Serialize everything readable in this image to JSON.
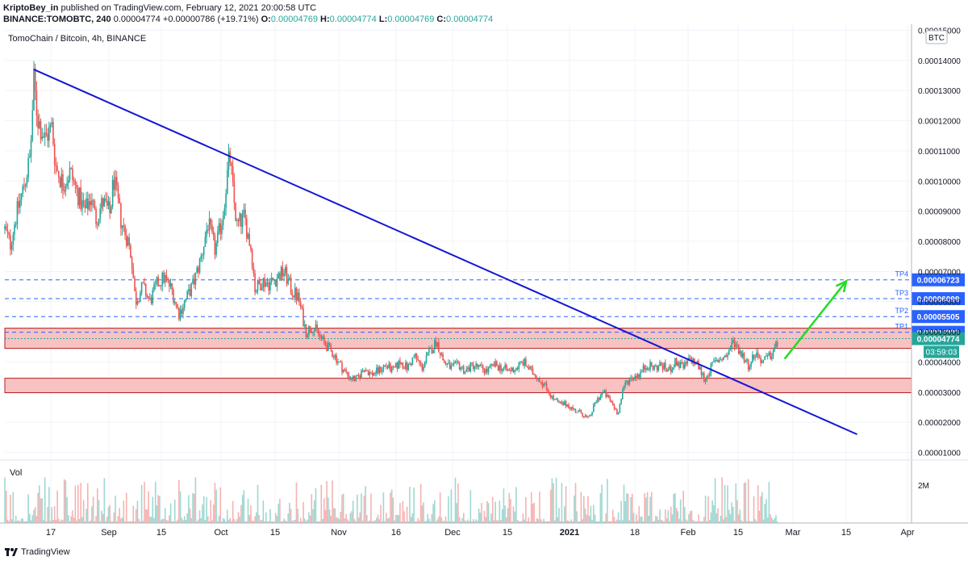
{
  "header": {
    "author": "KriptoBey_in",
    "published_text": "published on TradingView.com, February 12, 2021 20:00:58 UTC",
    "symbol": "BINANCE:TOMOBTC, 240",
    "price": "0.00004774",
    "change": "+0.00000786 (+19.71%)",
    "o_label": "O:",
    "o_value": "0.00004769",
    "h_label": "H:",
    "h_value": "0.00004774",
    "l_label": "L:",
    "l_value": "0.00004769",
    "c_label": "C:",
    "c_value": "0.00004774"
  },
  "chart_title": "TomoChain / Bitcoin, 4h, BINANCE",
  "vol_label": "Vol",
  "vol_axis_label": "2M",
  "footer_brand": "TradingView",
  "colors": {
    "up": "#26a69a",
    "down": "#ef5350",
    "trendline": "#1515d6",
    "arrow": "#22dd22",
    "level": "#2962ff",
    "zone_fill": "#f8c2c2",
    "zone_border": "#b71c1c",
    "countdown_bg": "#26a69a"
  },
  "chart_data": {
    "type": "candlestick",
    "title": "TomoChain / Bitcoin, 4h, BINANCE",
    "currency": "BTC",
    "y_axis": {
      "min": 8e-06,
      "max": 0.000152,
      "ticks": [
        "0.00001000",
        "0.00002000",
        "0.00003000",
        "0.00004000",
        "0.00005000",
        "0.00006000",
        "0.00007000",
        "0.00008000",
        "0.00009000",
        "0.00010000",
        "0.00011000",
        "0.00012000",
        "0.00013000",
        "0.00014000",
        "0.00015000"
      ]
    },
    "x_axis": {
      "ticks": [
        "17",
        "Sep",
        "15",
        "Oct",
        "15",
        "Nov",
        "16",
        "Dec",
        "15",
        "2021",
        "18",
        "Feb",
        "15",
        "Mar",
        "15",
        "Apr"
      ]
    },
    "price_path": [
      {
        "x": 0,
        "y": 8.4e-05
      },
      {
        "x": 1.5,
        "y": 7.9e-05
      },
      {
        "x": 3,
        "y": 8.8e-05
      },
      {
        "x": 5,
        "y": 9.7e-05
      },
      {
        "x": 7,
        "y": 0.000108
      },
      {
        "x": 8,
        "y": 0.000133
      },
      {
        "x": 9,
        "y": 0.000121
      },
      {
        "x": 11,
        "y": 0.000114
      },
      {
        "x": 13,
        "y": 0.000118
      },
      {
        "x": 14,
        "y": 0.000105
      },
      {
        "x": 16,
        "y": 9.9e-05
      },
      {
        "x": 18,
        "y": 0.000103
      },
      {
        "x": 20,
        "y": 9.6e-05
      },
      {
        "x": 22,
        "y": 9e-05
      },
      {
        "x": 24,
        "y": 9.5e-05
      },
      {
        "x": 25,
        "y": 8.7e-05
      },
      {
        "x": 27,
        "y": 9.3e-05
      },
      {
        "x": 29,
        "y": 8.9e-05
      },
      {
        "x": 30,
        "y": 0.000101
      },
      {
        "x": 31,
        "y": 9.4e-05
      },
      {
        "x": 32,
        "y": 8.7e-05
      },
      {
        "x": 34,
        "y": 8e-05
      },
      {
        "x": 35,
        "y": 7.4e-05
      },
      {
        "x": 36,
        "y": 6e-05
      },
      {
        "x": 38,
        "y": 6.5e-05
      },
      {
        "x": 40,
        "y": 6e-05
      },
      {
        "x": 42,
        "y": 6.6e-05
      },
      {
        "x": 44,
        "y": 6.8e-05
      },
      {
        "x": 46,
        "y": 6.4e-05
      },
      {
        "x": 48,
        "y": 5.6e-05
      },
      {
        "x": 50,
        "y": 6.1e-05
      },
      {
        "x": 52,
        "y": 6.6e-05
      },
      {
        "x": 54,
        "y": 7.4e-05
      },
      {
        "x": 56,
        "y": 8.6e-05
      },
      {
        "x": 58,
        "y": 7.7e-05
      },
      {
        "x": 60,
        "y": 8.8e-05
      },
      {
        "x": 62,
        "y": 0.000109
      },
      {
        "x": 63,
        "y": 9.5e-05
      },
      {
        "x": 64,
        "y": 8.5e-05
      },
      {
        "x": 66,
        "y": 8.8e-05
      },
      {
        "x": 68,
        "y": 7.7e-05
      },
      {
        "x": 69,
        "y": 6.4e-05
      },
      {
        "x": 71,
        "y": 6.7e-05
      },
      {
        "x": 73,
        "y": 6.6e-05
      },
      {
        "x": 75,
        "y": 6.8e-05
      },
      {
        "x": 77,
        "y": 7e-05
      },
      {
        "x": 79,
        "y": 6.4e-05
      },
      {
        "x": 81,
        "y": 6.1e-05
      },
      {
        "x": 83,
        "y": 5e-05
      },
      {
        "x": 85,
        "y": 5.2e-05
      },
      {
        "x": 87,
        "y": 4.8e-05
      },
      {
        "x": 89,
        "y": 4.5e-05
      },
      {
        "x": 91,
        "y": 4.2e-05
      },
      {
        "x": 93,
        "y": 3.8e-05
      },
      {
        "x": 95,
        "y": 3.5e-05
      },
      {
        "x": 97,
        "y": 3.4e-05
      },
      {
        "x": 99,
        "y": 3.8e-05
      },
      {
        "x": 101,
        "y": 3.6e-05
      },
      {
        "x": 103,
        "y": 3.7e-05
      },
      {
        "x": 105,
        "y": 3.9e-05
      },
      {
        "x": 107,
        "y": 3.7e-05
      },
      {
        "x": 109,
        "y": 4e-05
      },
      {
        "x": 111,
        "y": 3.8e-05
      },
      {
        "x": 113,
        "y": 4.2e-05
      },
      {
        "x": 115,
        "y": 3.8e-05
      },
      {
        "x": 117,
        "y": 4.3e-05
      },
      {
        "x": 119,
        "y": 4.7e-05
      },
      {
        "x": 121,
        "y": 4e-05
      },
      {
        "x": 123,
        "y": 3.8e-05
      },
      {
        "x": 125,
        "y": 3.9e-05
      },
      {
        "x": 127,
        "y": 3.7e-05
      },
      {
        "x": 129,
        "y": 3.9e-05
      },
      {
        "x": 131,
        "y": 3.8e-05
      },
      {
        "x": 133,
        "y": 3.7e-05
      },
      {
        "x": 135,
        "y": 3.9e-05
      },
      {
        "x": 137,
        "y": 3.8e-05
      },
      {
        "x": 139,
        "y": 3.7e-05
      },
      {
        "x": 141,
        "y": 3.8e-05
      },
      {
        "x": 143,
        "y": 4e-05
      },
      {
        "x": 145,
        "y": 3.7e-05
      },
      {
        "x": 147,
        "y": 3.5e-05
      },
      {
        "x": 149,
        "y": 3.2e-05
      },
      {
        "x": 151,
        "y": 2.8e-05
      },
      {
        "x": 153,
        "y": 2.6e-05
      },
      {
        "x": 155,
        "y": 2.6e-05
      },
      {
        "x": 157,
        "y": 2.4e-05
      },
      {
        "x": 159,
        "y": 2.3e-05
      },
      {
        "x": 161,
        "y": 2.1e-05
      },
      {
        "x": 163,
        "y": 2.7e-05
      },
      {
        "x": 165,
        "y": 3e-05
      },
      {
        "x": 167,
        "y": 2.7e-05
      },
      {
        "x": 169,
        "y": 2.3e-05
      },
      {
        "x": 171,
        "y": 3.3e-05
      },
      {
        "x": 173,
        "y": 3.5e-05
      },
      {
        "x": 175,
        "y": 3.6e-05
      },
      {
        "x": 177,
        "y": 3.9e-05
      },
      {
        "x": 179,
        "y": 3.8e-05
      },
      {
        "x": 181,
        "y": 3.9e-05
      },
      {
        "x": 183,
        "y": 3.7e-05
      },
      {
        "x": 185,
        "y": 4e-05
      },
      {
        "x": 187,
        "y": 3.8e-05
      },
      {
        "x": 189,
        "y": 4.1e-05
      },
      {
        "x": 191,
        "y": 3.9e-05
      },
      {
        "x": 193,
        "y": 3.4e-05
      },
      {
        "x": 195,
        "y": 3.9e-05
      },
      {
        "x": 197,
        "y": 4.1e-05
      },
      {
        "x": 199,
        "y": 4.2e-05
      },
      {
        "x": 201,
        "y": 4.7e-05
      },
      {
        "x": 203,
        "y": 4.3e-05
      },
      {
        "x": 205,
        "y": 3.9e-05
      },
      {
        "x": 207,
        "y": 4.3e-05
      },
      {
        "x": 209,
        "y": 4e-05
      },
      {
        "x": 211,
        "y": 4.2e-05
      },
      {
        "x": 213,
        "y": 4.6e-05
      }
    ],
    "volume_path_max": "2M",
    "trendline": {
      "from": {
        "x": 8,
        "y": 0.000137
      },
      "to": {
        "x": 235,
        "y": 1.6e-05
      }
    },
    "arrow": {
      "from": {
        "x": 215,
        "y": 4.1e-05
      },
      "to": {
        "x": 232,
        "y": 6.68e-05
      }
    },
    "zones": [
      {
        "y_low": 4.45e-05,
        "y_high": 5.12e-05
      },
      {
        "y_low": 2.98e-05,
        "y_high": 3.46e-05
      }
    ],
    "levels": [
      {
        "name": "TP4",
        "value": 6.723e-05,
        "label": "0.00006723"
      },
      {
        "name": "TP3",
        "value": 6.099e-05,
        "label": "0.00006099"
      },
      {
        "name": "TP2",
        "value": 5.505e-05,
        "label": "0.00005505"
      },
      {
        "name": "TP1",
        "value": 4.985e-05,
        "label": "0.00004985"
      }
    ],
    "last_price": {
      "value": 4.774e-05,
      "label": "0.00004774",
      "countdown": "03:59:03"
    }
  }
}
